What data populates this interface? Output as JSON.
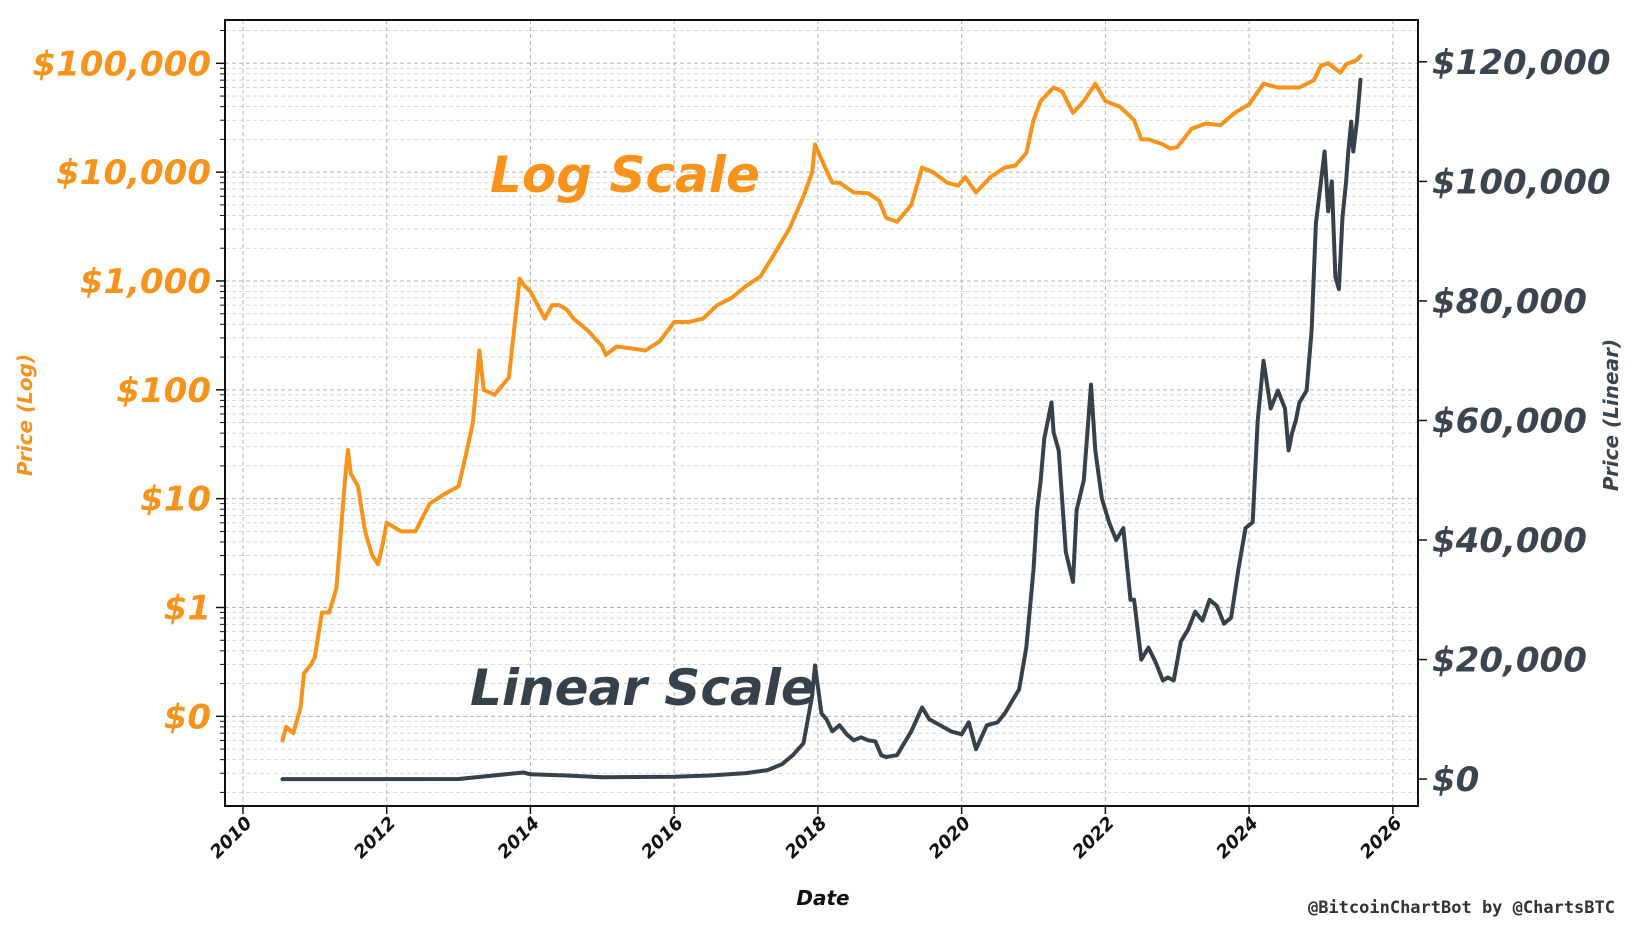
{
  "chart_data": {
    "type": "line",
    "xlabel": "Date",
    "ylabel_left": "Price (Log)",
    "ylabel_right": "Price (Linear)",
    "annotations": {
      "log": "Log Scale",
      "linear": "Linear Scale"
    },
    "credit": "@BitcoinChartBot by @ChartsBTC",
    "grid": true,
    "colors": {
      "log": "#f7931a",
      "linear": "#36414c",
      "grid": "#b5b5b5"
    },
    "x_range": [
      2009.75,
      2026.35
    ],
    "x_ticks": [
      "2010",
      "2012",
      "2014",
      "2016",
      "2018",
      "2020",
      "2022",
      "2024",
      "2026"
    ],
    "x_tick_values": [
      2010,
      2012,
      2014,
      2016,
      2018,
      2020,
      2022,
      2024,
      2026
    ],
    "left_axis": {
      "scale": "log",
      "range": [
        0.015,
        250000
      ],
      "tick_values": [
        0.1,
        1,
        10,
        100,
        1000,
        10000,
        100000
      ],
      "tick_labels": [
        "$0",
        "$1",
        "$10",
        "$100",
        "$1,000",
        "$10,000",
        "$100,000"
      ]
    },
    "right_axis": {
      "scale": "linear",
      "range": [
        -4500,
        127000
      ],
      "tick_values": [
        0,
        20000,
        40000,
        60000,
        80000,
        100000,
        120000
      ],
      "tick_labels": [
        "$0",
        "$20,000",
        "$40,000",
        "$60,000",
        "$80,000",
        "$100,000",
        "$120,000"
      ]
    },
    "series": [
      {
        "name": "Log Scale",
        "axis": "left",
        "x": [
          2010.55,
          2010.6,
          2010.7,
          2010.8,
          2010.85,
          2010.95,
          2011.0,
          2011.1,
          2011.2,
          2011.3,
          2011.42,
          2011.46,
          2011.5,
          2011.6,
          2011.7,
          2011.8,
          2011.88,
          2011.95,
          2012.0,
          2012.2,
          2012.4,
          2012.6,
          2012.8,
          2013.0,
          2013.1,
          2013.2,
          2013.29,
          2013.35,
          2013.5,
          2013.7,
          2013.85,
          2013.92,
          2014.0,
          2014.1,
          2014.2,
          2014.3,
          2014.4,
          2014.5,
          2014.6,
          2014.8,
          2015.0,
          2015.05,
          2015.2,
          2015.4,
          2015.6,
          2015.8,
          2016.0,
          2016.2,
          2016.4,
          2016.6,
          2016.8,
          2017.0,
          2017.2,
          2017.4,
          2017.6,
          2017.8,
          2017.92,
          2017.96,
          2018.1,
          2018.2,
          2018.3,
          2018.5,
          2018.7,
          2018.85,
          2018.95,
          2019.1,
          2019.3,
          2019.45,
          2019.6,
          2019.8,
          2019.95,
          2020.05,
          2020.2,
          2020.4,
          2020.6,
          2020.75,
          2020.9,
          2021.0,
          2021.1,
          2021.28,
          2021.4,
          2021.55,
          2021.7,
          2021.86,
          2022.0,
          2022.2,
          2022.4,
          2022.5,
          2022.6,
          2022.8,
          2022.9,
          2023.0,
          2023.2,
          2023.4,
          2023.6,
          2023.8,
          2024.0,
          2024.2,
          2024.4,
          2024.6,
          2024.7,
          2024.9,
          2025.0,
          2025.1,
          2025.27,
          2025.35,
          2025.5,
          2025.55
        ],
        "y": [
          0.06,
          0.08,
          0.07,
          0.12,
          0.25,
          0.3,
          0.35,
          0.9,
          0.9,
          1.5,
          15,
          28,
          17,
          13,
          5,
          3,
          2.5,
          4,
          6,
          5,
          5,
          9,
          11,
          13,
          25,
          50,
          230,
          100,
          90,
          130,
          1050,
          900,
          800,
          600,
          450,
          600,
          600,
          550,
          450,
          350,
          250,
          210,
          250,
          240,
          230,
          280,
          420,
          420,
          450,
          600,
          700,
          900,
          1100,
          1800,
          3000,
          6000,
          10000,
          18000,
          11000,
          8000,
          8000,
          6500,
          6400,
          5500,
          3800,
          3500,
          5000,
          11000,
          10000,
          8000,
          7500,
          9000,
          6500,
          9000,
          11000,
          11500,
          15000,
          30000,
          45000,
          60000,
          55000,
          35000,
          45000,
          65000,
          45000,
          40000,
          30000,
          20000,
          20000,
          18000,
          16500,
          17000,
          25000,
          28000,
          27000,
          35000,
          42000,
          65000,
          60000,
          60000,
          60000,
          70000,
          95000,
          100000,
          82000,
          98000,
          107000,
          117000
        ]
      },
      {
        "name": "Linear Scale",
        "axis": "right",
        "x": [
          2010.55,
          2012.0,
          2013.0,
          2013.9,
          2014.0,
          2014.5,
          2015.0,
          2016.0,
          2016.5,
          2017.0,
          2017.3,
          2017.5,
          2017.65,
          2017.8,
          2017.92,
          2017.96,
          2018.05,
          2018.12,
          2018.2,
          2018.3,
          2018.4,
          2018.5,
          2018.6,
          2018.7,
          2018.8,
          2018.88,
          2018.95,
          2019.1,
          2019.3,
          2019.45,
          2019.55,
          2019.7,
          2019.85,
          2020.0,
          2020.1,
          2020.2,
          2020.35,
          2020.5,
          2020.6,
          2020.7,
          2020.8,
          2020.9,
          2021.0,
          2021.05,
          2021.1,
          2021.15,
          2021.25,
          2021.28,
          2021.35,
          2021.45,
          2021.55,
          2021.6,
          2021.7,
          2021.8,
          2021.86,
          2021.95,
          2022.05,
          2022.15,
          2022.25,
          2022.35,
          2022.4,
          2022.45,
          2022.5,
          2022.6,
          2022.7,
          2022.8,
          2022.87,
          2022.95,
          2023.05,
          2023.15,
          2023.25,
          2023.35,
          2023.45,
          2023.55,
          2023.65,
          2023.75,
          2023.85,
          2023.95,
          2024.05,
          2024.12,
          2024.2,
          2024.3,
          2024.4,
          2024.5,
          2024.55,
          2024.6,
          2024.65,
          2024.7,
          2024.8,
          2024.87,
          2024.93,
          2025.0,
          2025.05,
          2025.1,
          2025.15,
          2025.2,
          2025.25,
          2025.3,
          2025.35,
          2025.38,
          2025.42,
          2025.45,
          2025.5,
          2025.55
        ],
        "y": [
          0,
          5,
          13,
          1100,
          800,
          600,
          300,
          400,
          600,
          1000,
          1500,
          2500,
          4000,
          6000,
          14000,
          19000,
          11000,
          10000,
          8000,
          9000,
          7500,
          6500,
          7000,
          6500,
          6300,
          4000,
          3700,
          4000,
          8000,
          12000,
          10000,
          9000,
          8000,
          7500,
          9500,
          5000,
          9000,
          9500,
          11000,
          13000,
          15000,
          22000,
          35000,
          45000,
          50000,
          57000,
          63000,
          58000,
          55000,
          38000,
          33000,
          45000,
          50000,
          66000,
          55000,
          47000,
          43000,
          40000,
          42000,
          30000,
          30000,
          25000,
          20000,
          22000,
          19500,
          16500,
          17000,
          16500,
          23000,
          25000,
          28000,
          26500,
          30000,
          29000,
          26000,
          27000,
          35000,
          42000,
          43000,
          60000,
          70000,
          62000,
          65000,
          62000,
          55000,
          58000,
          60000,
          63000,
          65000,
          75000,
          93000,
          100000,
          105000,
          95000,
          100000,
          84000,
          82000,
          94000,
          100000,
          105000,
          110000,
          105000,
          110000,
          117000
        ]
      }
    ]
  }
}
